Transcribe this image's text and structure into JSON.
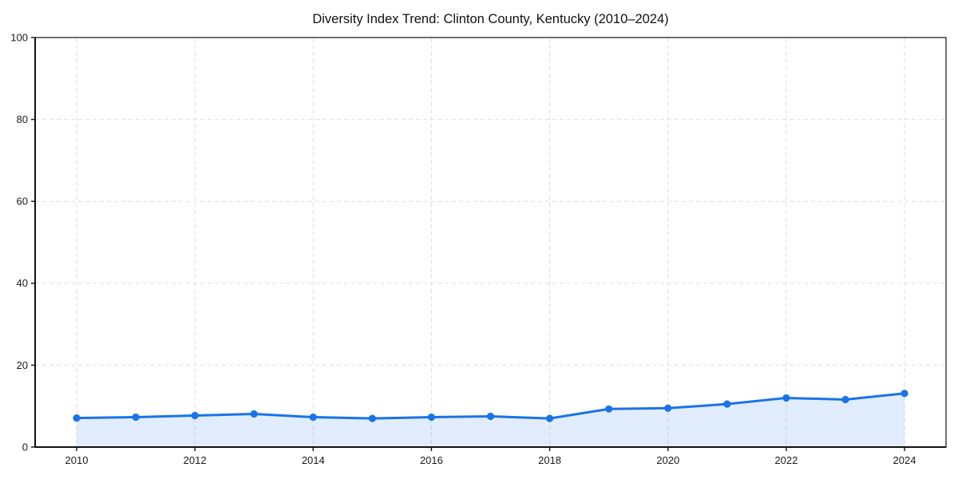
{
  "page": {
    "background": "#ffffff"
  },
  "chart_data": {
    "type": "line",
    "title": "Diversity Index Trend: Clinton County, Kentucky (2010–2024)",
    "x": [
      2010,
      2011,
      2012,
      2013,
      2014,
      2015,
      2016,
      2017,
      2018,
      2019,
      2020,
      2021,
      2022,
      2023,
      2024
    ],
    "values": [
      7.1,
      7.3,
      7.7,
      8.1,
      7.3,
      7.0,
      7.3,
      7.5,
      7.0,
      9.3,
      9.5,
      10.5,
      12.0,
      11.6,
      13.1
    ],
    "xlabel": "",
    "ylabel": "",
    "xlim": [
      2010,
      2024
    ],
    "ylim": [
      0,
      100
    ],
    "xticks": [
      2010,
      2012,
      2014,
      2016,
      2018,
      2020,
      2022,
      2024
    ],
    "yticks": [
      0,
      20,
      40,
      60,
      80,
      100
    ],
    "grid": true,
    "grid_style": "dashed",
    "legend": "none",
    "area_fill": true,
    "marker": "circle",
    "colors": {
      "line": "#1a73e8",
      "marker": "#1a73e8",
      "fill": "rgba(26,115,232,0.13)",
      "grid": "#dedede",
      "axis": "#111111",
      "text": "#1a1a1a",
      "background": "#ffffff"
    }
  }
}
